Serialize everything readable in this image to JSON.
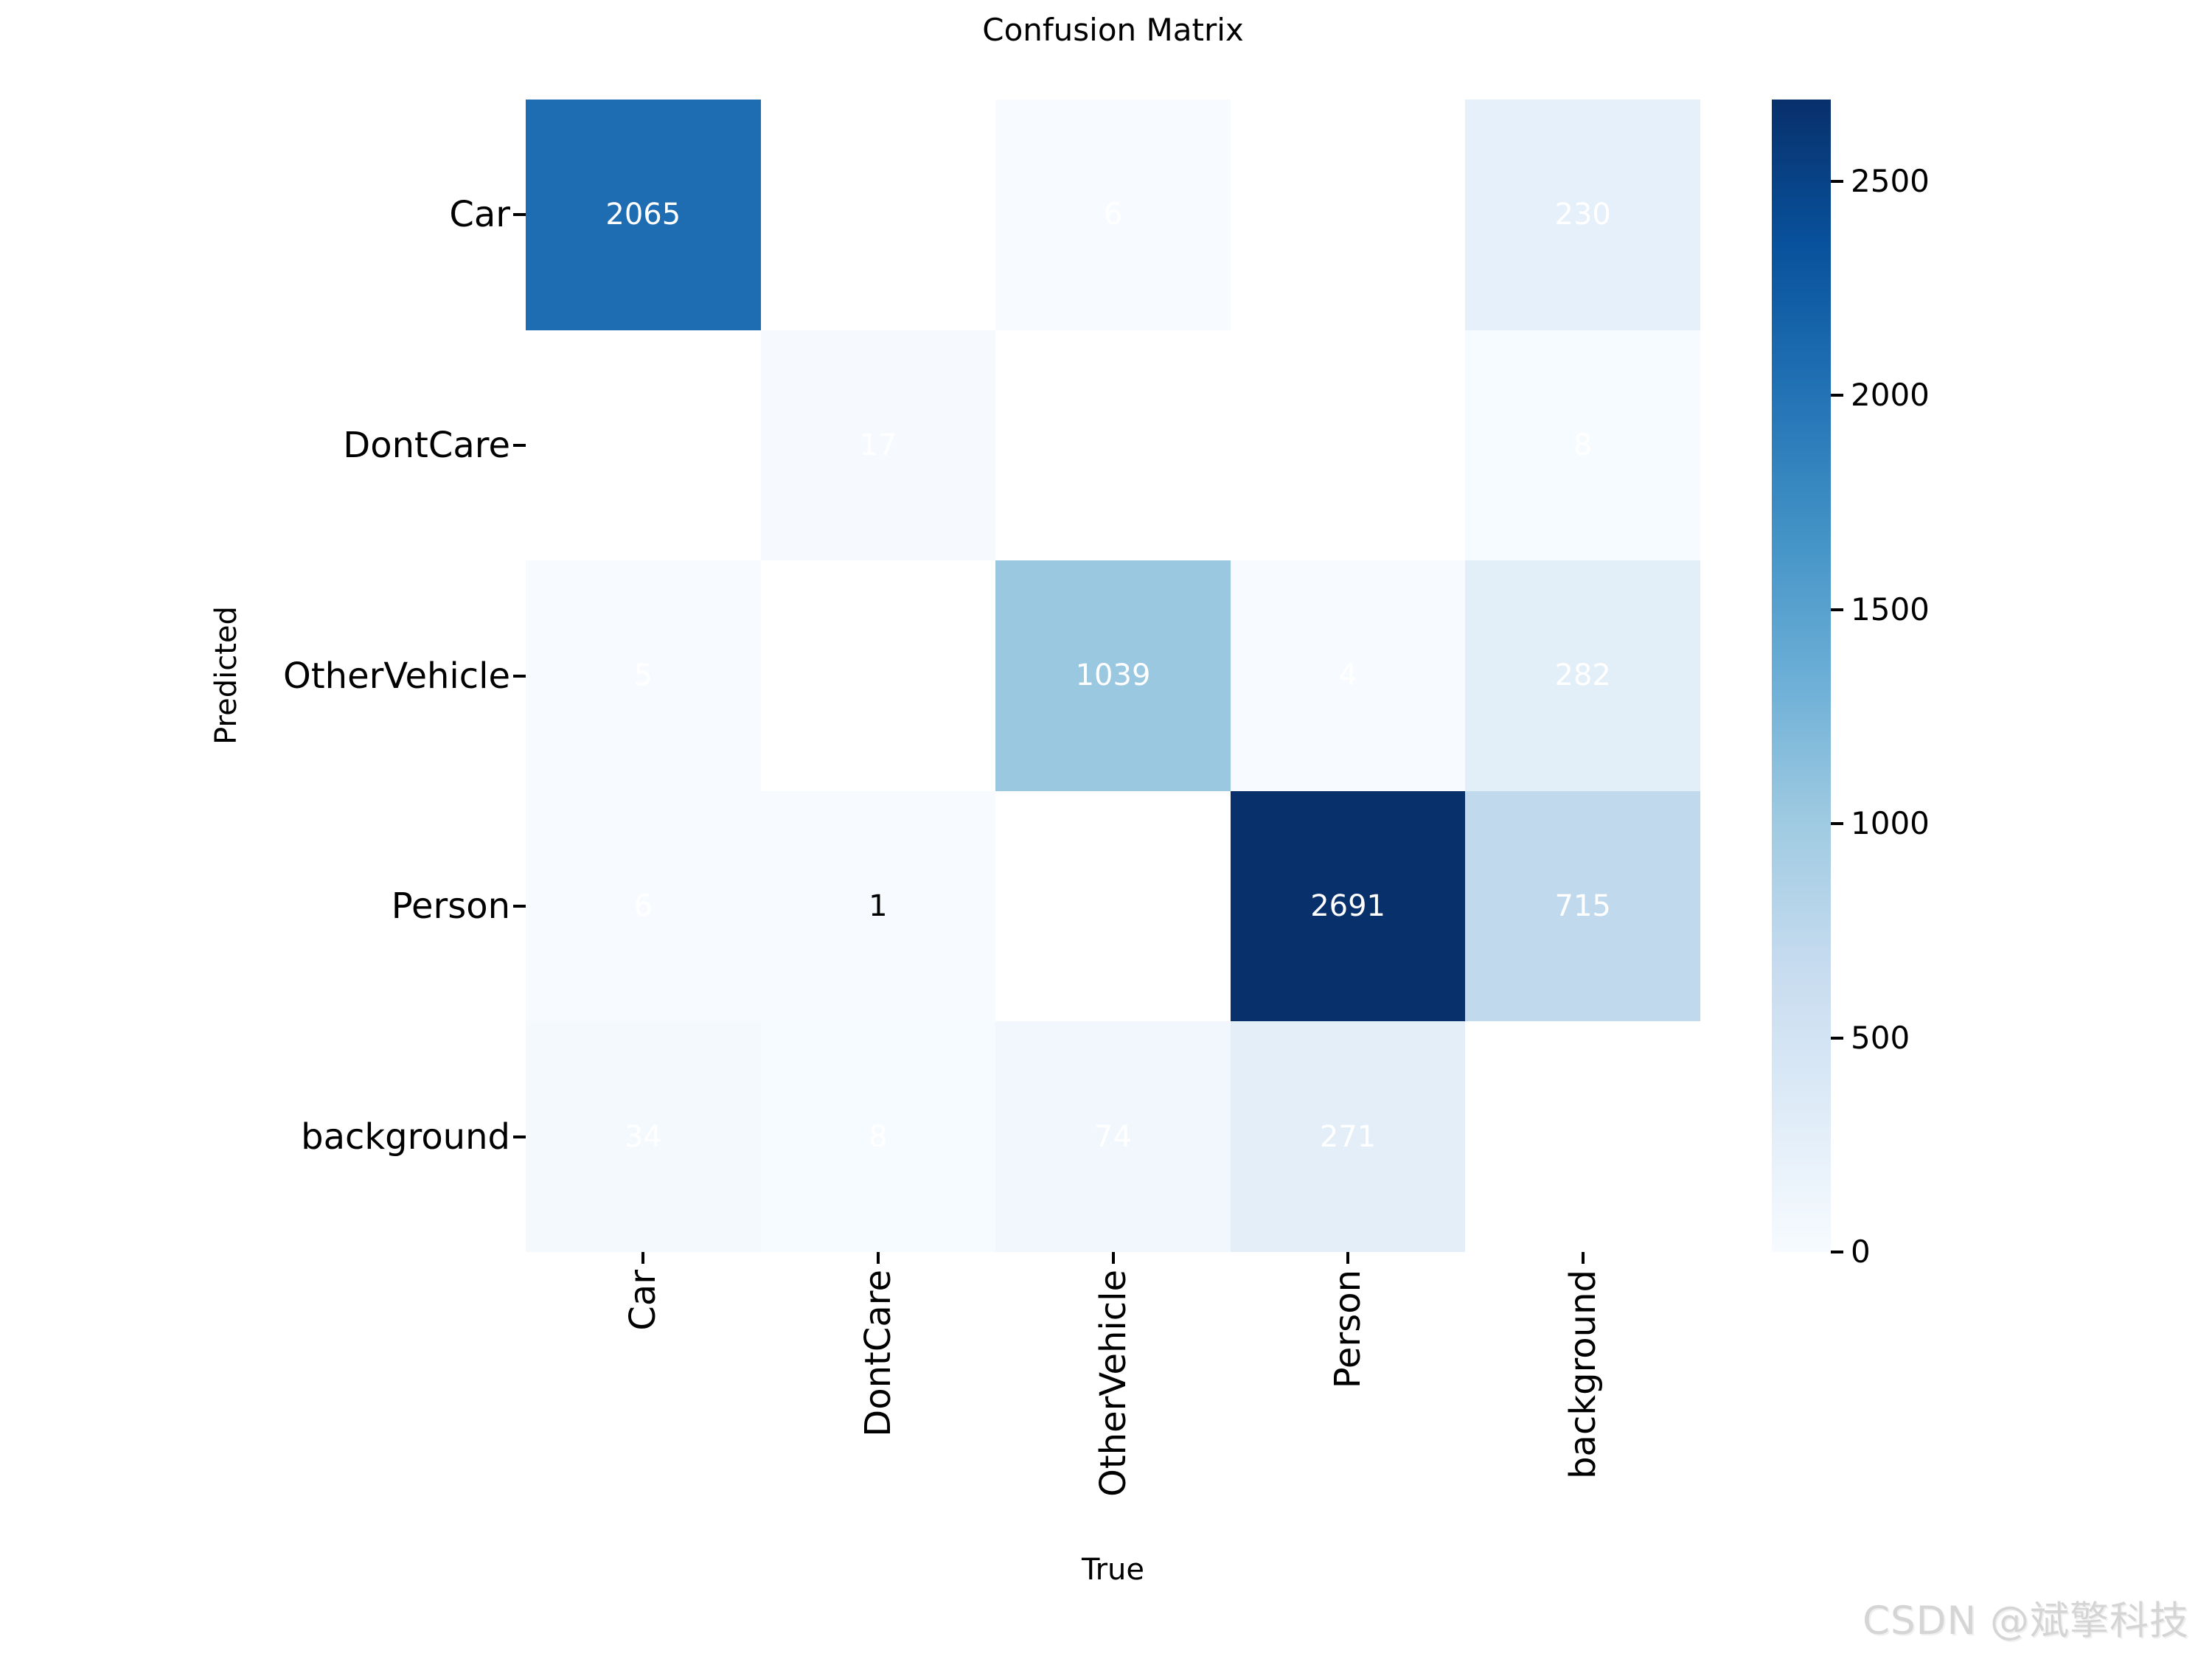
{
  "title": "Confusion Matrix",
  "watermark": "CSDN @斌擎科技",
  "chart_data": {
    "type": "heatmap",
    "title": "Confusion Matrix",
    "xlabel": "True",
    "ylabel": "Predicted",
    "x_categories": [
      "Car",
      "DontCare",
      "OtherVehicle",
      "Person",
      "background"
    ],
    "y_categories": [
      "Car",
      "DontCare",
      "OtherVehicle",
      "Person",
      "background"
    ],
    "matrix": [
      [
        2065,
        null,
        6,
        null,
        230
      ],
      [
        null,
        17,
        null,
        null,
        8
      ],
      [
        5,
        null,
        1039,
        4,
        282
      ],
      [
        6,
        1,
        null,
        2691,
        715
      ],
      [
        34,
        8,
        74,
        271,
        null
      ]
    ],
    "masked_cells_note": "null cells are masked and drawn pure white with no annotation",
    "colormap": "Blues",
    "vmin": 0,
    "vmax": 2691,
    "colorbar_ticks": [
      0,
      500,
      1000,
      1500,
      2000,
      2500
    ],
    "legend_position": "right-colorbar",
    "grid": "off",
    "masked_color": "#ffffff",
    "annotation_color_default": "#ffffff",
    "annotation_color_overrides": [
      {
        "row": 3,
        "col": 1,
        "color": "#000000"
      }
    ],
    "colormap_stops": [
      {
        "pos": 0.0,
        "color": "#f7fbff"
      },
      {
        "pos": 0.125,
        "color": "#deebf7"
      },
      {
        "pos": 0.25,
        "color": "#c6dbef"
      },
      {
        "pos": 0.375,
        "color": "#9ecae1"
      },
      {
        "pos": 0.5,
        "color": "#6baed6"
      },
      {
        "pos": 0.625,
        "color": "#4292c6"
      },
      {
        "pos": 0.75,
        "color": "#2171b5"
      },
      {
        "pos": 0.875,
        "color": "#08519c"
      },
      {
        "pos": 1.0,
        "color": "#08306b"
      }
    ]
  }
}
